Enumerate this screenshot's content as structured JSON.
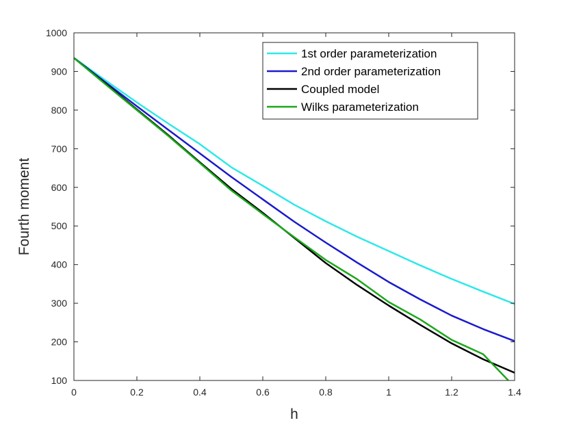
{
  "chart_data": {
    "type": "line",
    "xlabel": "h",
    "ylabel": "Fourth moment",
    "xlim": [
      0,
      1.4
    ],
    "ylim": [
      100,
      1000
    ],
    "xticks": [
      0,
      0.2,
      0.4,
      0.6,
      0.8,
      1,
      1.2,
      1.4
    ],
    "xtick_labels": [
      "0",
      "0.2",
      "0.4",
      "0.6",
      "0.8",
      "1",
      "1.2",
      "1.4"
    ],
    "yticks": [
      100,
      200,
      300,
      400,
      500,
      600,
      700,
      800,
      900,
      1000
    ],
    "ytick_labels": [
      "100",
      "200",
      "300",
      "400",
      "500",
      "600",
      "700",
      "800",
      "900",
      "1000"
    ],
    "grid": false,
    "legend_position": "top-right",
    "series": [
      {
        "name": "1st order parameterization",
        "color": "#2ee8e8",
        "x": [
          0,
          0.1,
          0.2,
          0.3,
          0.4,
          0.5,
          0.6,
          0.7,
          0.8,
          0.9,
          1.0,
          1.1,
          1.2,
          1.3,
          1.4
        ],
        "y": [
          935,
          877,
          820,
          765,
          712,
          652,
          604,
          555,
          512,
          472,
          435,
          398,
          363,
          330,
          298
        ]
      },
      {
        "name": "2nd order parameterization",
        "color": "#1a1acc",
        "x": [
          0,
          0.1,
          0.2,
          0.3,
          0.4,
          0.5,
          0.6,
          0.7,
          0.8,
          0.9,
          1.0,
          1.1,
          1.2,
          1.3,
          1.4
        ],
        "y": [
          935,
          872,
          810,
          749,
          688,
          627,
          569,
          511,
          457,
          405,
          355,
          310,
          268,
          233,
          202
        ]
      },
      {
        "name": "Coupled model",
        "color": "#000000",
        "x": [
          0,
          0.1,
          0.2,
          0.3,
          0.4,
          0.5,
          0.6,
          0.7,
          0.8,
          0.9,
          1.0,
          1.1,
          1.2,
          1.3,
          1.4
        ],
        "y": [
          935,
          869,
          802,
          735,
          665,
          596,
          534,
          469,
          404,
          347,
          294,
          244,
          196,
          155,
          120
        ]
      },
      {
        "name": "Wilks parameterization",
        "color": "#1aa81a",
        "x": [
          0,
          0.1,
          0.2,
          0.3,
          0.4,
          0.5,
          0.6,
          0.7,
          0.8,
          0.9,
          1.0,
          1.1,
          1.2,
          1.3,
          1.38
        ],
        "y": [
          935,
          867,
          800,
          733,
          663,
          592,
          531,
          471,
          412,
          362,
          303,
          258,
          205,
          168,
          100
        ]
      }
    ]
  }
}
